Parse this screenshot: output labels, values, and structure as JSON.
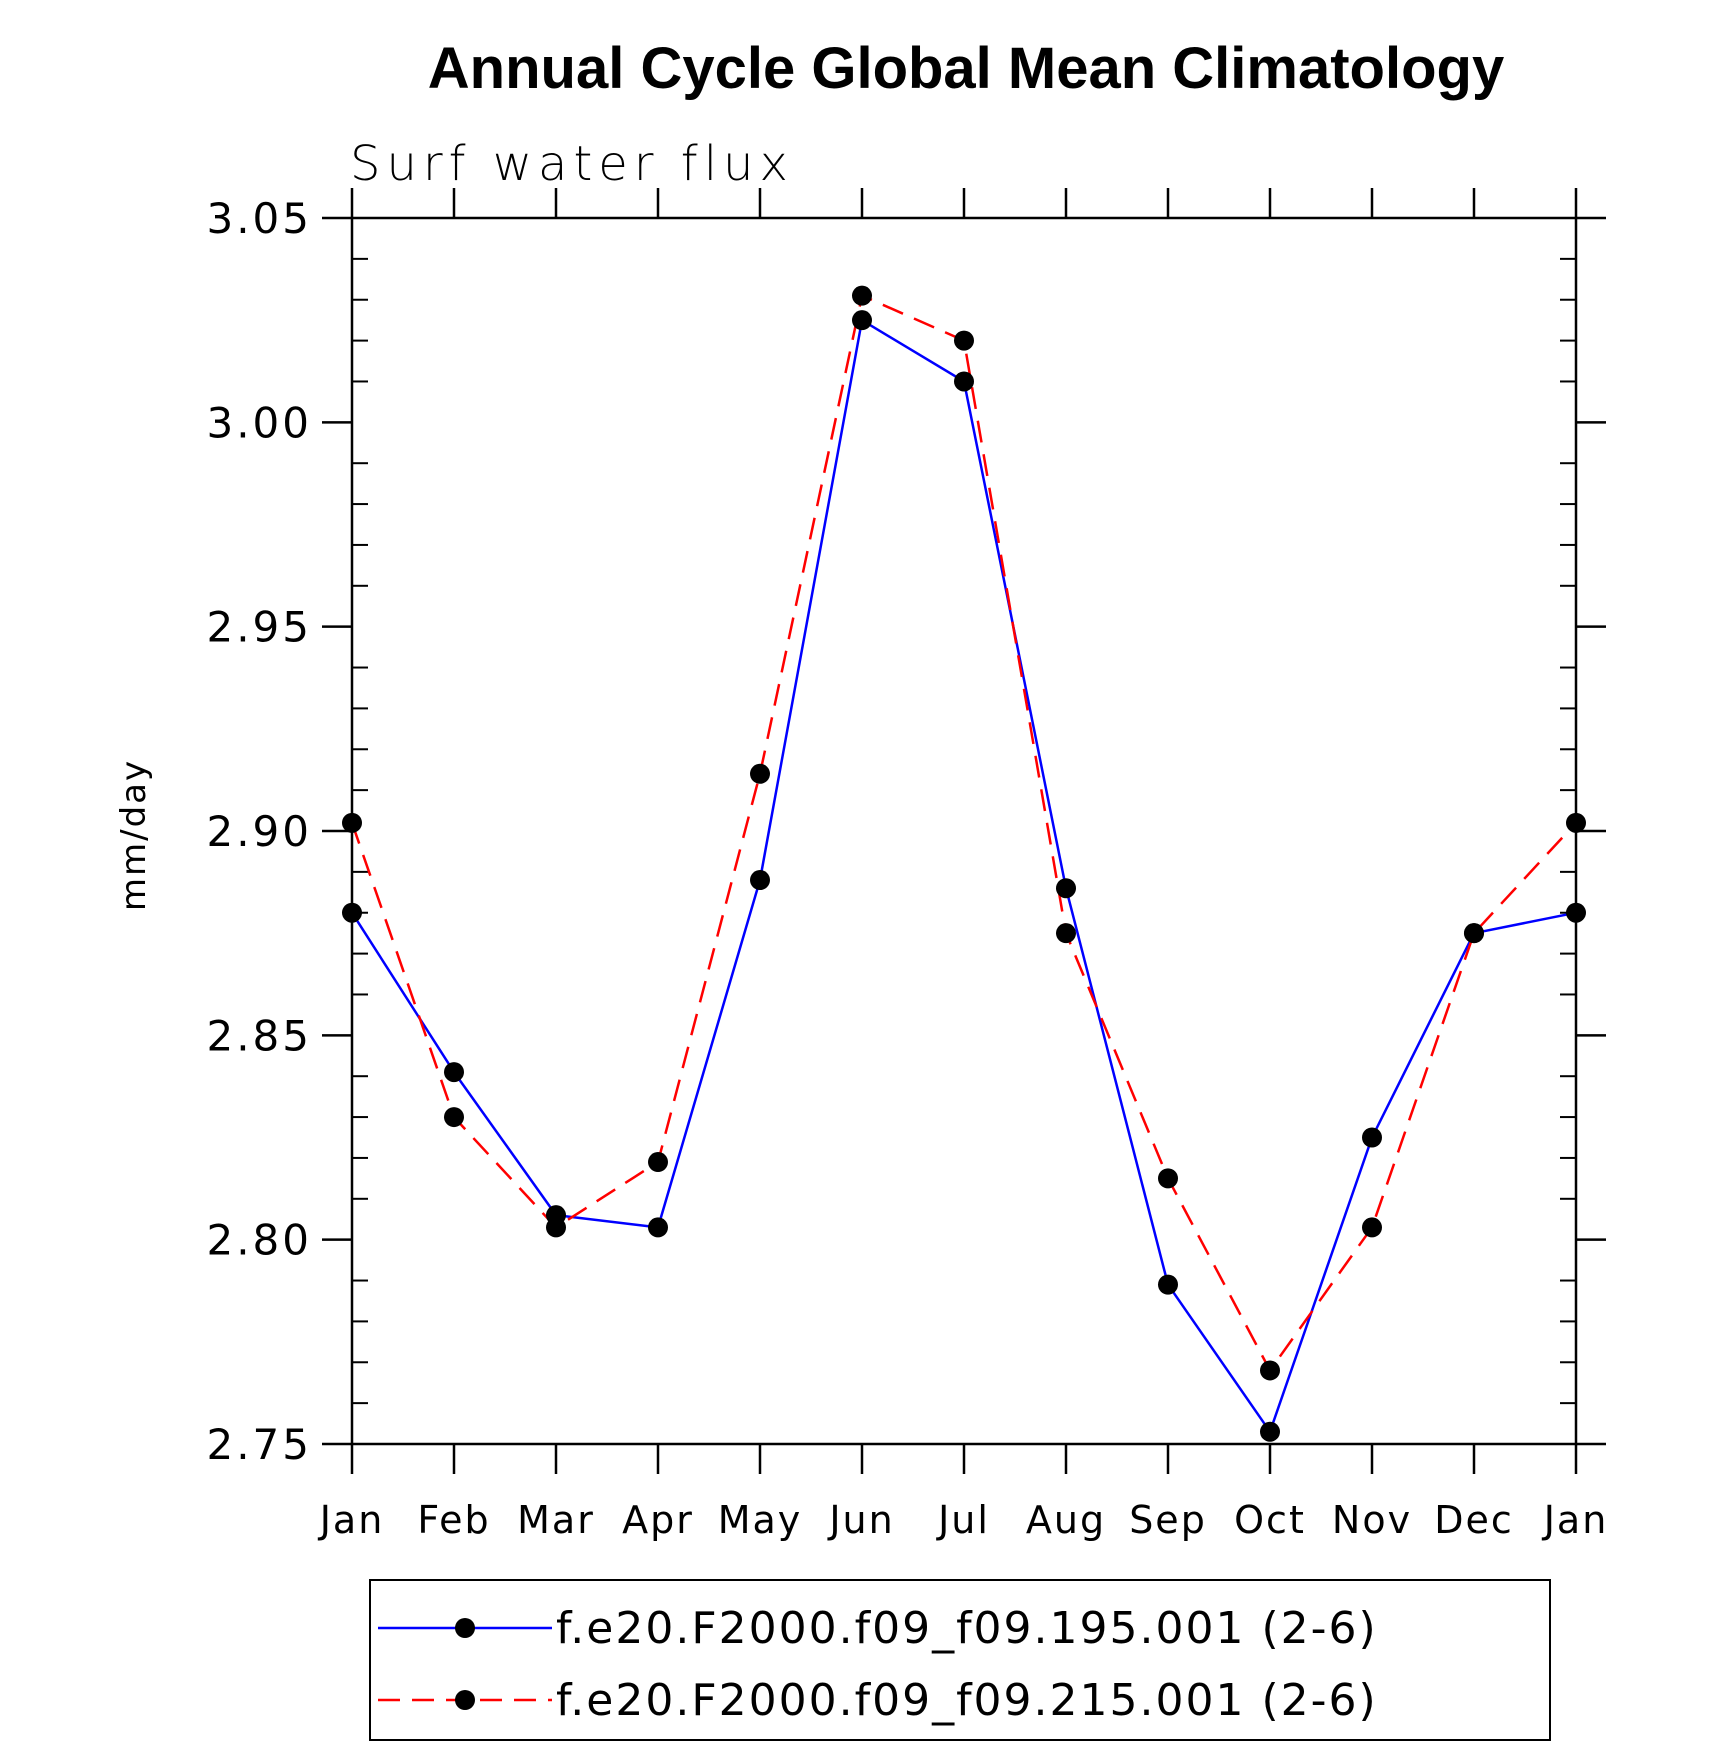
{
  "chart_data": {
    "type": "line",
    "title": "Annual Cycle Global Mean Climatology",
    "subtitle": "Surf water flux",
    "xlabel": "",
    "ylabel": "mm/day",
    "categories": [
      "Jan",
      "Feb",
      "Mar",
      "Apr",
      "May",
      "Jun",
      "Jul",
      "Aug",
      "Sep",
      "Oct",
      "Nov",
      "Dec",
      "Jan"
    ],
    "ylim": [
      2.75,
      3.05
    ],
    "yticks": [
      "2.75",
      "2.80",
      "2.85",
      "2.90",
      "2.95",
      "3.00",
      "3.05"
    ],
    "grid": false,
    "legend_position": "bottom",
    "series": [
      {
        "name": "f.e20.F2000.f09_f09.195.001 (2-6)",
        "color": "#0000ff",
        "line_style": "solid",
        "marker": "filled-circle",
        "values": [
          2.88,
          2.841,
          2.806,
          2.803,
          2.888,
          3.025,
          3.01,
          2.886,
          2.789,
          2.753,
          2.825,
          2.875,
          2.88
        ]
      },
      {
        "name": "f.e20.F2000.f09_f09.215.001 (2-6)",
        "color": "#ff0000",
        "line_style": "dashed",
        "marker": "filled-circle",
        "values": [
          2.902,
          2.83,
          2.803,
          2.819,
          2.914,
          3.031,
          3.02,
          2.875,
          2.815,
          2.768,
          2.803,
          2.875,
          2.902
        ]
      }
    ]
  }
}
